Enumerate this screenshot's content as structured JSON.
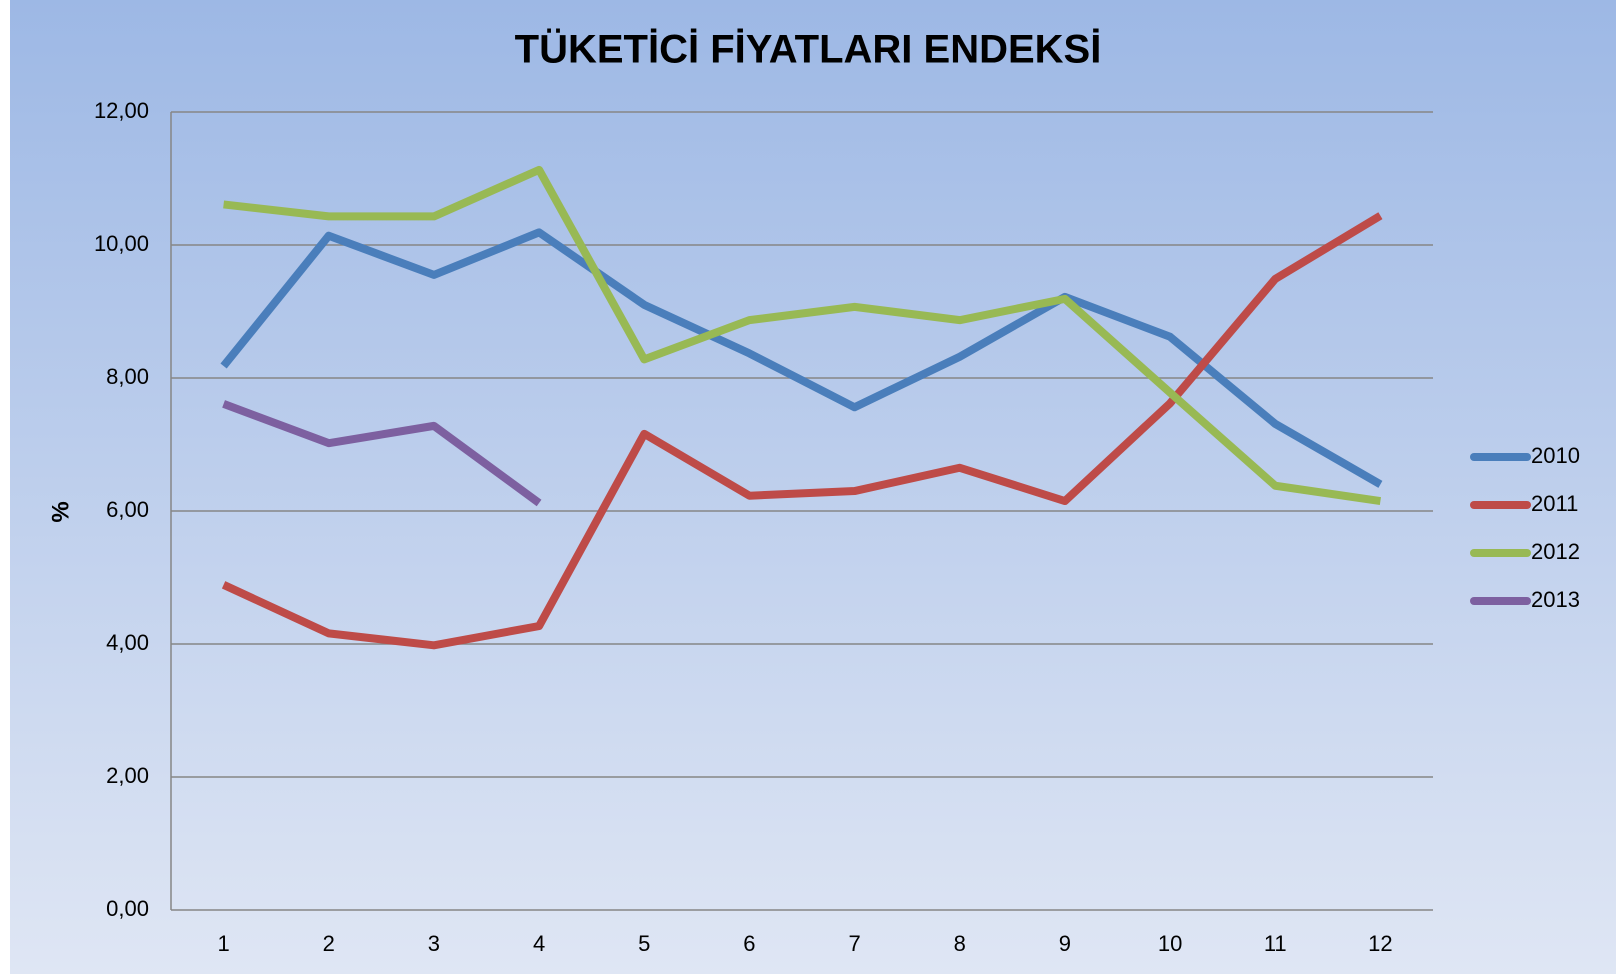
{
  "chart_data": {
    "type": "line",
    "title": "TÜKETİCİ FİYATLARI ENDEKSİ",
    "y_label": "%",
    "categories": [
      1,
      2,
      3,
      4,
      5,
      6,
      7,
      8,
      9,
      10,
      11,
      12
    ],
    "series": [
      {
        "name": "2010",
        "color": "#4a7ebb",
        "values": [
          8.18,
          10.14,
          9.55,
          10.19,
          9.1,
          8.37,
          7.56,
          8.32,
          9.22,
          8.62,
          7.31,
          6.4
        ]
      },
      {
        "name": "2011",
        "color": "#be4b48",
        "values": [
          4.89,
          4.16,
          3.98,
          4.27,
          7.16,
          6.23,
          6.3,
          6.65,
          6.15,
          7.62,
          9.49,
          10.44
        ]
      },
      {
        "name": "2012",
        "color": "#98b954",
        "values": [
          10.61,
          10.43,
          10.43,
          11.13,
          8.28,
          8.87,
          9.07,
          8.87,
          9.19,
          7.78,
          6.38,
          6.15
        ]
      },
      {
        "name": "2013",
        "color": "#7d60a0",
        "values": [
          7.61,
          7.02,
          7.28,
          6.12,
          null,
          null,
          null,
          null,
          null,
          null,
          null,
          null
        ]
      }
    ],
    "ylim": [
      0,
      12
    ],
    "yticks": [
      {
        "value": 0,
        "label": "0,00"
      },
      {
        "value": 2,
        "label": "2,00"
      },
      {
        "value": 4,
        "label": "4,00"
      },
      {
        "value": 6,
        "label": "6,00"
      },
      {
        "value": 8,
        "label": "8,00"
      },
      {
        "value": 10,
        "label": "10,00"
      },
      {
        "value": 12,
        "label": "12,00"
      }
    ],
    "grid": true,
    "legend": "right"
  }
}
